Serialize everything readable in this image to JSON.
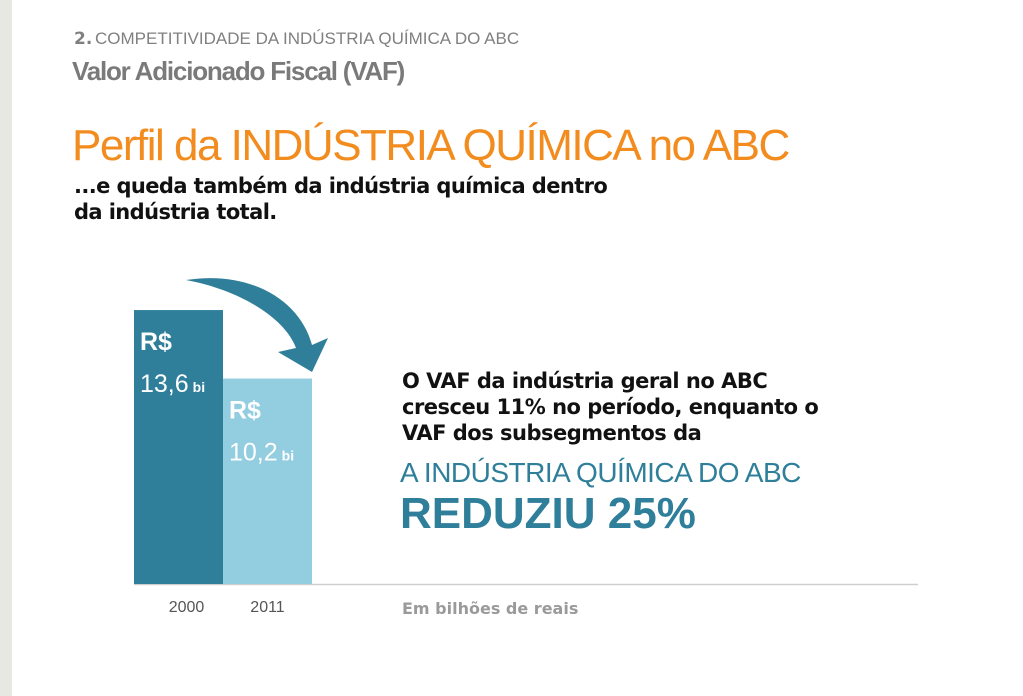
{
  "slide": {
    "section_number": "2.",
    "section_title": "COMPETITIVIDADE DA INDÚSTRIA QUÍMICA DO ABC",
    "heading": "Valor Adicionado Fiscal (VAF)",
    "body_lines": [
      "O VAF da indústria geral no ABC",
      "cresceu 11% no período, enquanto o",
      "VAF dos subsegmentos da"
    ],
    "highlight": "A INDÚSTRIA QUÍMICA DO ABC",
    "conclusion": "REDUZIU 25%"
  },
  "chart_data": {
    "type": "bar",
    "title": "Perfil da INDÚSTRIA QUÍMICA no ABC",
    "subtitle": [
      "...e queda também da indústria química dentro",
      "da indústria total."
    ],
    "categories": [
      "2000",
      "2011"
    ],
    "values": [
      13.6,
      10.2
    ],
    "value_labels": [
      "13,6",
      "10,2"
    ],
    "value_prefix": "R$",
    "value_unit": "bi",
    "colors": [
      "#2f7f9b",
      "#92cde0"
    ],
    "ylim": [
      0,
      14
    ],
    "x_note": "Em bilhões de reais"
  }
}
